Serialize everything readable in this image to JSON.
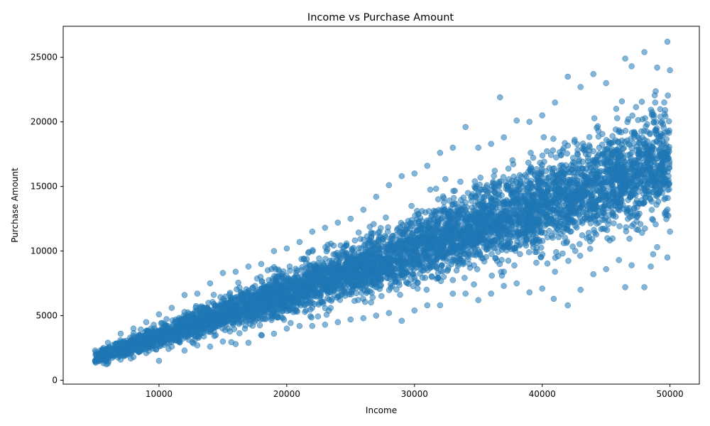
{
  "chart_data": {
    "type": "scatter",
    "title": "Income vs Purchase Amount",
    "xlabel": "Income",
    "ylabel": "Purchase Amount",
    "xlim": [
      2500,
      52300
    ],
    "ylim": [
      -300,
      27400
    ],
    "x_ticks": [
      10000,
      20000,
      30000,
      40000,
      50000
    ],
    "y_ticks": [
      0,
      5000,
      10000,
      15000,
      20000,
      25000
    ],
    "grid": false,
    "marker_color": "#1f77b4",
    "marker_alpha": 0.55,
    "series": [
      {
        "points": [
          [
            5000,
            1500
          ],
          [
            5000,
            2300
          ],
          [
            6000,
            1300
          ],
          [
            6000,
            2900
          ],
          [
            7000,
            1600
          ],
          [
            7000,
            3600
          ],
          [
            8000,
            1800
          ],
          [
            8000,
            4000
          ],
          [
            9000,
            2100
          ],
          [
            9000,
            4500
          ],
          [
            10000,
            1500
          ],
          [
            10000,
            5100
          ],
          [
            11000,
            2600
          ],
          [
            11000,
            5600
          ],
          [
            12000,
            2300
          ],
          [
            12000,
            6600
          ],
          [
            13000,
            2700
          ],
          [
            13000,
            6700
          ],
          [
            14000,
            2600
          ],
          [
            14000,
            7500
          ],
          [
            15000,
            3000
          ],
          [
            15000,
            8300
          ],
          [
            16000,
            2800
          ],
          [
            16000,
            8400
          ],
          [
            17000,
            2900
          ],
          [
            17000,
            8800
          ],
          [
            18000,
            3500
          ],
          [
            18000,
            9000
          ],
          [
            19000,
            3600
          ],
          [
            19000,
            10000
          ],
          [
            20000,
            4000
          ],
          [
            20000,
            10200
          ],
          [
            21000,
            4200
          ],
          [
            21000,
            10700
          ],
          [
            22000,
            4200
          ],
          [
            22000,
            11500
          ],
          [
            23000,
            4300
          ],
          [
            23000,
            11800
          ],
          [
            24000,
            4500
          ],
          [
            24000,
            12200
          ],
          [
            25000,
            4700
          ],
          [
            25000,
            12500
          ],
          [
            26000,
            4800
          ],
          [
            26000,
            13200
          ],
          [
            27000,
            5000
          ],
          [
            27000,
            14200
          ],
          [
            28000,
            5200
          ],
          [
            28000,
            15100
          ],
          [
            29000,
            4600
          ],
          [
            29000,
            15800
          ],
          [
            30000,
            5400
          ],
          [
            30000,
            16000
          ],
          [
            31000,
            5800
          ],
          [
            31000,
            16600
          ],
          [
            32000,
            5800
          ],
          [
            32000,
            17600
          ],
          [
            33000,
            6700
          ],
          [
            33000,
            18000
          ],
          [
            34000,
            6700
          ],
          [
            34000,
            19600
          ],
          [
            35000,
            6200
          ],
          [
            35000,
            18000
          ],
          [
            36000,
            6700
          ],
          [
            36000,
            18300
          ],
          [
            36700,
            21900
          ],
          [
            37000,
            7300
          ],
          [
            37000,
            18800
          ],
          [
            38000,
            7500
          ],
          [
            38000,
            20100
          ],
          [
            39000,
            6800
          ],
          [
            39000,
            20000
          ],
          [
            40000,
            7100
          ],
          [
            40000,
            20500
          ],
          [
            40900,
            6300
          ],
          [
            41000,
            8400
          ],
          [
            41000,
            21500
          ],
          [
            42000,
            5800
          ],
          [
            42000,
            23500
          ],
          [
            43000,
            7000
          ],
          [
            43000,
            22700
          ],
          [
            44000,
            8200
          ],
          [
            44000,
            23700
          ],
          [
            45000,
            8600
          ],
          [
            45000,
            23000
          ],
          [
            46000,
            9300
          ],
          [
            46500,
            7200
          ],
          [
            46500,
            24900
          ],
          [
            47000,
            8900
          ],
          [
            47000,
            24300
          ],
          [
            48000,
            7200
          ],
          [
            48000,
            25400
          ],
          [
            48500,
            8800
          ],
          [
            49000,
            10300
          ],
          [
            49000,
            24200
          ],
          [
            49800,
            9500
          ],
          [
            49800,
            26200
          ],
          [
            50000,
            11500
          ],
          [
            50000,
            24000
          ]
        ]
      }
    ]
  }
}
